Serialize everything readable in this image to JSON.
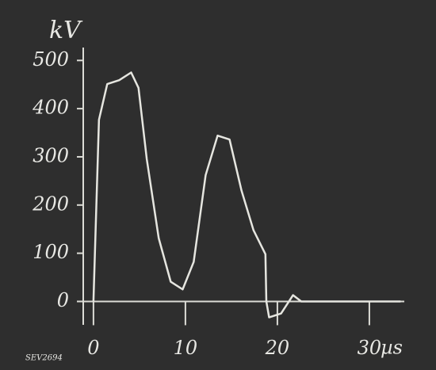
{
  "chart_data": {
    "type": "line",
    "y_label": "kV",
    "x_label": "µs",
    "annotation": "SEV2694",
    "x": [
      0,
      0.6,
      1.5,
      2.8,
      4.1,
      4.9,
      5.8,
      7.1,
      8.4,
      9.7,
      10.9,
      12.2,
      13.5,
      14.8,
      16.1,
      17.4,
      18.7,
      18.8,
      19.1,
      20.4,
      21.7,
      22.6,
      33.4
    ],
    "series": [
      {
        "color": "#e6e6e0",
        "values": [
          0,
          377,
          451,
          459,
          475,
          443,
          295,
          131,
          41,
          25,
          82,
          262,
          344,
          336,
          230,
          148,
          98,
          0,
          -33,
          -25,
          13,
          0,
          0
        ]
      }
    ],
    "xlim": [
      -1.8,
      33.8
    ],
    "xticks": [
      0,
      10,
      20,
      30
    ],
    "ylim": [
      -65,
      535
    ],
    "yticks": [
      0,
      100,
      200,
      300,
      400,
      500
    ]
  }
}
